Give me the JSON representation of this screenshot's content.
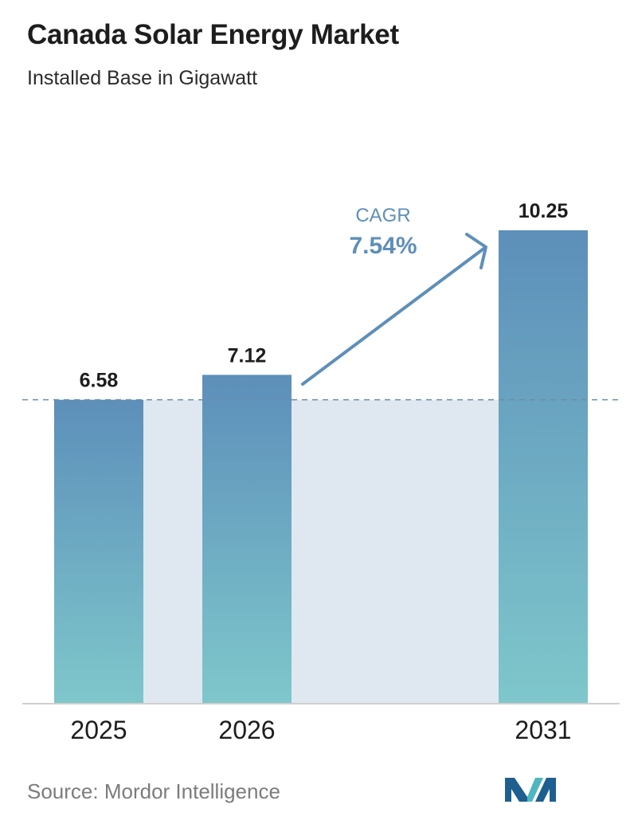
{
  "header": {
    "title": "Canada Solar Energy Market",
    "subtitle": "Installed Base in Gigawatt"
  },
  "chart_data": {
    "type": "bar",
    "title": "Canada Solar Energy Market",
    "subtitle": "Installed Base in Gigawatt",
    "categories": [
      "2025",
      "2026",
      "2031"
    ],
    "values": [
      6.58,
      7.12,
      10.25
    ],
    "value_labels": [
      "6.58",
      "7.12",
      "10.25"
    ],
    "xlabel": "",
    "ylabel": "",
    "ylim": [
      0,
      10.25
    ],
    "grid": false,
    "legend": "none",
    "reference_line": {
      "value": 6.58,
      "style": "dashed"
    },
    "annotation": {
      "label": "CAGR",
      "value": "7.54%"
    }
  },
  "footer": {
    "source": "Source:  Mordor Intelligence",
    "logo_icon": "mordor-intelligence-logo-icon"
  },
  "colors": {
    "bar_top": "#5d8fba",
    "bar_bottom": "#7ec7cb",
    "band": "#dfe8f1",
    "reference_line": "#6a8ea8",
    "cagr": "#5e8fb8",
    "axis": "#cfcfcf",
    "logo_dark": "#1f5f8f",
    "logo_light": "#4fb6c0"
  }
}
